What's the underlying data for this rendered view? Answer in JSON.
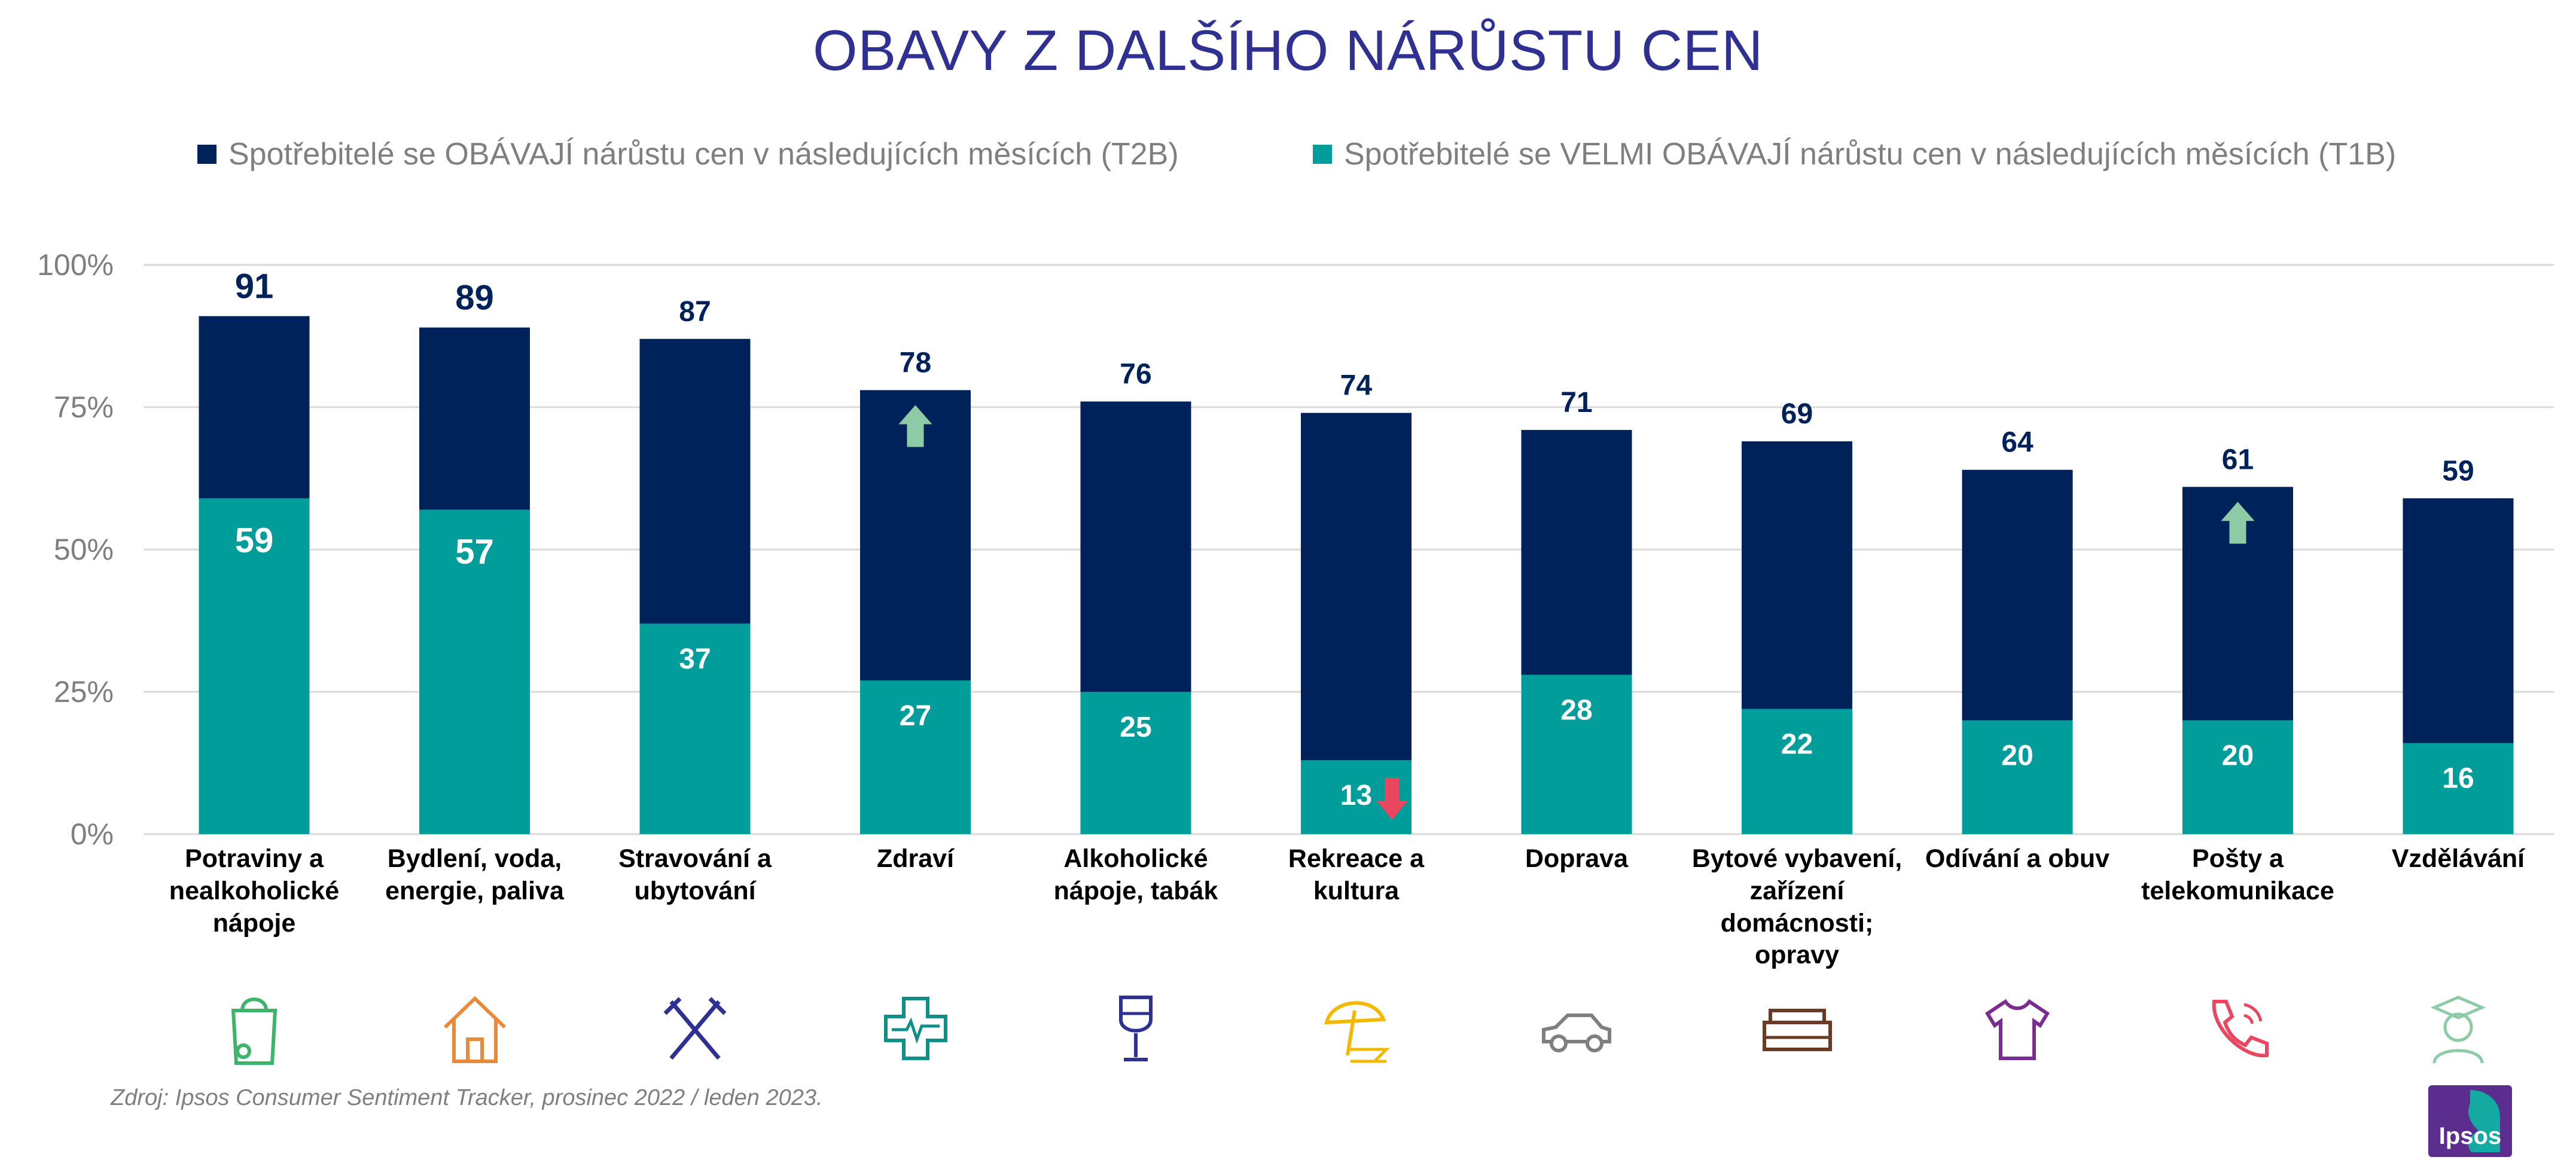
{
  "title": "OBAVY Z DALŠÍHO NÁRŮSTU CEN",
  "legend": {
    "t2b": "Spotřebitelé se OBÁVAJÍ nárůstu cen v následujících měsících (T2B)",
    "t1b": "Spotřebitelé se VELMI OBÁVAJÍ nárůstu cen v následujících měsících (T1B)"
  },
  "colors": {
    "t2b": "#00225A",
    "t1b": "#009D9A",
    "title": "#2E3191",
    "arrow_up": "#8CCBA5",
    "arrow_down": "#E8475F"
  },
  "chart_data": {
    "type": "bar",
    "stacking": "overlay",
    "ylim": [
      0,
      100
    ],
    "yticks": [
      "0%",
      "25%",
      "50%",
      "75%",
      "100%"
    ],
    "grid": true,
    "legend_position": "top",
    "categories": [
      "Potraviny a nealkoholické nápoje",
      "Bydlení, voda, energie, paliva",
      "Stravování a ubytování",
      "Zdraví",
      "Alkoholické nápoje, tabák",
      "Rekreace a kultura",
      "Doprava",
      "Bytové vybavení, zařízení domácnosti; opravy",
      "Odívání a obuv",
      "Pošty a telekomunikace",
      "Vzdělávání"
    ],
    "series": [
      {
        "name": "Spotřebitelé se OBÁVAJÍ nárůstu cen v následujících měsících (T2B)",
        "values": [
          91,
          89,
          87,
          78,
          76,
          74,
          71,
          69,
          64,
          61,
          59
        ]
      },
      {
        "name": "Spotřebitelé se VELMI OBÁVAJÍ nárůstu cen v následujících měsících (T1B)",
        "values": [
          59,
          57,
          37,
          27,
          25,
          13,
          28,
          22,
          20,
          20,
          16
        ]
      }
    ],
    "trend_arrows": [
      {
        "category": "Zdraví",
        "series": "T2B",
        "direction": "up"
      },
      {
        "category": "Pošty a telekomunikace",
        "series": "T2B",
        "direction": "up"
      },
      {
        "category": "Rekreace a kultura",
        "series": "T1B",
        "direction": "down"
      }
    ]
  },
  "icons": [
    "grocery-bag-icon",
    "house-icon",
    "fork-knife-icon",
    "medical-cross-icon",
    "wine-glass-icon",
    "beach-umbrella-icon",
    "car-icon",
    "sofa-icon",
    "tshirt-icon",
    "phone-icon",
    "graduate-icon"
  ],
  "source": "Zdroj: Ipsos Consumer Sentiment Tracker, prosinec 2022 / leden 2023.",
  "logo_text": "Ipsos"
}
